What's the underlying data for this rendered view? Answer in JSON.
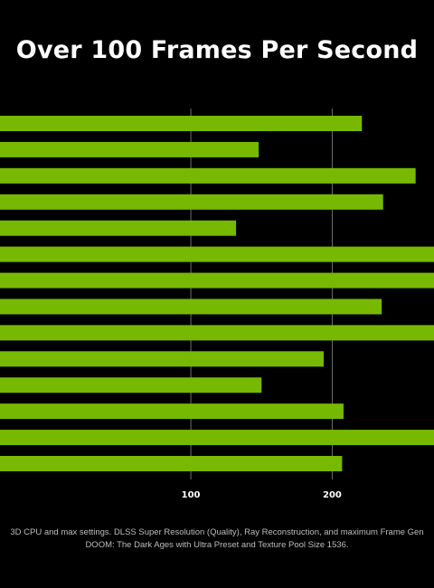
{
  "chart_data": {
    "type": "bar",
    "orientation": "horizontal",
    "title": "Over 100 Frames Per Second",
    "xlabel": "",
    "ylabel": "",
    "xlim": [
      -35,
      272
    ],
    "xticks": [
      100,
      200
    ],
    "xtick_labels": [
      "100",
      "200"
    ],
    "grid": true,
    "values": [
      221,
      148,
      259,
      236,
      132,
      272,
      272,
      235,
      272,
      194,
      150,
      208,
      272,
      207
    ],
    "bar_color": "#76b900",
    "footnotes": [
      "3D CPU and max settings. DLSS Super Resolution (Quality), Ray Reconstruction, and maximum Frame Gen",
      "DOOM: The Dark Ages with Ultra Preset and Texture Pool Size 1536."
    ]
  }
}
